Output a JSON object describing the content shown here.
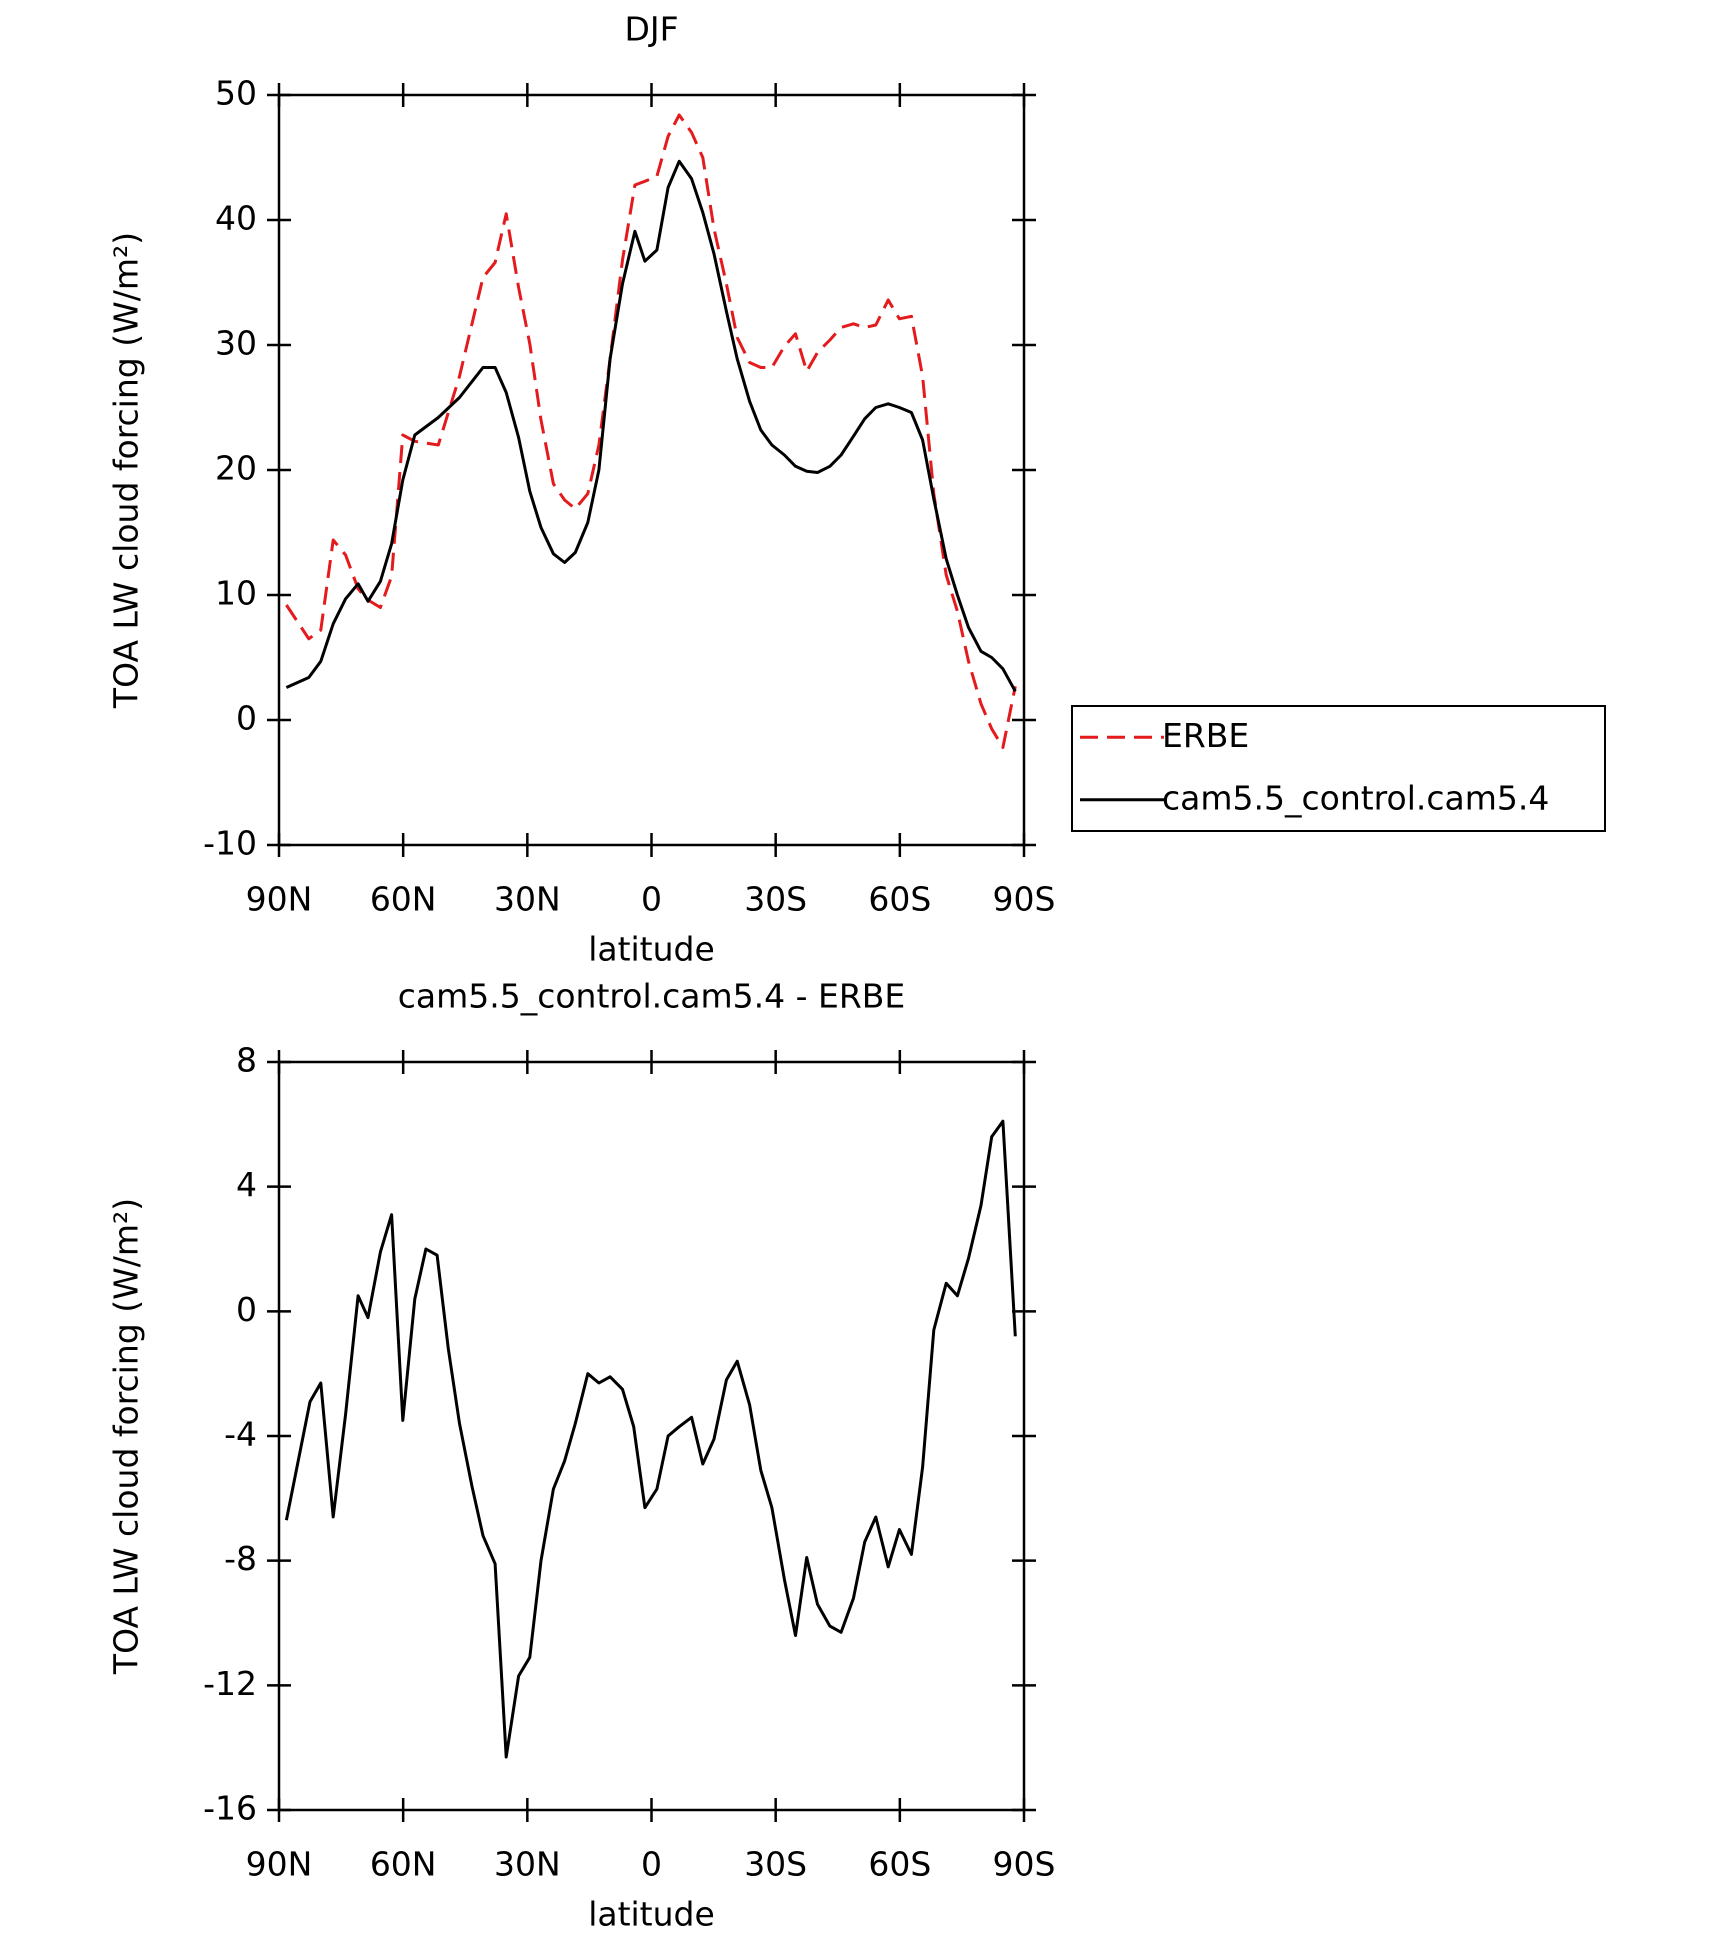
{
  "chart_data": [
    {
      "type": "line",
      "title": "DJF",
      "xlabel": "latitude",
      "ylabel": "TOA LW cloud forcing (W/m²)",
      "x": [
        88.2,
        82.8,
        79.9,
        76.9,
        73.9,
        70.9,
        68.5,
        65.5,
        62.8,
        60.1,
        57.2,
        51.5,
        46.4,
        40.7,
        37.8,
        35.1,
        32.1,
        29.4,
        26.7,
        23.7,
        21.0,
        18.4,
        15.4,
        12.7,
        10.0,
        7.0,
        4.0,
        1.6,
        -1.3,
        -4.0,
        -6.7,
        -9.7,
        -12.4,
        -15.1,
        -18.1,
        -20.7,
        -23.7,
        -26.4,
        -29.1,
        -32.1,
        -34.8,
        -37.5,
        -40.1,
        -43.1,
        -45.8,
        -48.8,
        -51.5,
        -54.2,
        -57.2,
        -59.9,
        -62.8,
        -65.5,
        -68.2,
        -71.2,
        -73.9,
        -76.6,
        -79.6,
        -82.2,
        -84.9,
        -87.9
      ],
      "series": [
        {
          "name": "ERBE",
          "color": "#e41a1c",
          "linestyle": "dashed",
          "values": [
            9.2,
            6.5,
            7.2,
            14.4,
            13.2,
            10.5,
            9.6,
            9.0,
            11.5,
            22.8,
            22.3,
            22.0,
            27.5,
            35.4,
            36.6,
            40.5,
            34.6,
            30.1,
            24.0,
            18.9,
            17.6,
            16.9,
            18.1,
            22.0,
            28.9,
            36.8,
            42.8,
            43.1,
            43.5,
            46.7,
            48.4,
            47.0,
            45.0,
            39.3,
            34.9,
            30.6,
            28.6,
            28.2,
            28.2,
            29.9,
            30.9,
            27.9,
            29.4,
            30.4,
            31.4,
            31.7,
            31.4,
            31.6,
            33.6,
            32.1,
            32.3,
            27.5,
            18.1,
            11.6,
            8.7,
            4.7,
            1.3,
            -0.7,
            -2.2,
            2.7
          ]
        },
        {
          "name": "cam5.5_control.cam5.4",
          "color": "#000000",
          "linestyle": "solid",
          "values": [
            2.6,
            3.4,
            4.7,
            7.7,
            9.7,
            10.9,
            9.5,
            11.1,
            14.1,
            19.2,
            22.8,
            24.2,
            25.8,
            28.2,
            28.2,
            26.2,
            22.6,
            18.3,
            15.4,
            13.3,
            12.6,
            13.4,
            15.8,
            20.0,
            28.9,
            34.9,
            39.1,
            36.7,
            37.6,
            42.6,
            44.7,
            43.3,
            40.6,
            37.3,
            32.7,
            28.9,
            25.5,
            23.2,
            22.0,
            21.2,
            20.3,
            19.9,
            19.8,
            20.3,
            21.2,
            22.7,
            24.1,
            25.0,
            25.3,
            25.0,
            24.6,
            22.4,
            17.7,
            12.9,
            10.0,
            7.4,
            5.5,
            5.0,
            4.1,
            2.3
          ]
        }
      ],
      "xlim": [
        90,
        -90
      ],
      "ylim": [
        -10,
        50
      ],
      "xticks": [
        {
          "value": 90,
          "label": "90N"
        },
        {
          "value": 60,
          "label": "60N"
        },
        {
          "value": 30,
          "label": "30N"
        },
        0,
        {
          "value": -30,
          "label": "30S"
        },
        {
          "value": -60,
          "label": "60S"
        },
        {
          "value": -90,
          "label": "90S"
        }
      ],
      "yticks": [
        -10,
        0,
        10,
        20,
        30,
        40,
        50
      ],
      "legend": "right"
    },
    {
      "type": "line",
      "title": "cam5.5_control.cam5.4 - ERBE",
      "xlabel": "latitude",
      "ylabel": "TOA LW cloud forcing (W/m²)",
      "x": [
        88.2,
        82.5,
        79.9,
        76.9,
        73.9,
        70.9,
        68.5,
        65.5,
        62.8,
        60.1,
        57.2,
        54.5,
        51.8,
        49.1,
        46.4,
        43.4,
        40.7,
        37.8,
        35.1,
        32.1,
        29.4,
        26.7,
        23.7,
        21.0,
        18.4,
        15.4,
        12.7,
        10.0,
        7.0,
        4.3,
        1.6,
        -1.3,
        -4.0,
        -6.7,
        -9.7,
        -12.4,
        -15.1,
        -18.1,
        -20.7,
        -23.7,
        -26.4,
        -29.1,
        -32.1,
        -34.8,
        -37.5,
        -40.1,
        -43.1,
        -45.8,
        -48.8,
        -51.5,
        -54.2,
        -57.2,
        -59.9,
        -62.8,
        -65.5,
        -68.2,
        -71.2,
        -73.9,
        -76.6,
        -79.6,
        -82.2,
        -84.9,
        -87.9
      ],
      "series": [
        {
          "color": "#000000",
          "linestyle": "solid",
          "values": [
            -6.7,
            -2.9,
            -2.3,
            -6.6,
            -3.3,
            0.5,
            -0.2,
            1.9,
            3.1,
            -3.5,
            0.4,
            2.0,
            1.8,
            -1.2,
            -3.6,
            -5.6,
            -7.2,
            -8.1,
            -14.3,
            -11.7,
            -11.1,
            -8.0,
            -5.7,
            -4.8,
            -3.6,
            -2.0,
            -2.3,
            -2.1,
            -2.5,
            -3.7,
            -6.3,
            -5.7,
            -4.0,
            -3.7,
            -3.4,
            -4.9,
            -4.1,
            -2.2,
            -1.6,
            -3.0,
            -5.1,
            -6.3,
            -8.6,
            -10.4,
            -7.9,
            -9.4,
            -10.1,
            -10.3,
            -9.2,
            -7.4,
            -6.6,
            -8.2,
            -7.0,
            -7.8,
            -5.0,
            -0.6,
            0.9,
            0.5,
            1.7,
            3.4,
            5.6,
            6.1,
            -0.8
          ]
        }
      ],
      "xlim": [
        90,
        -90
      ],
      "ylim": [
        -16,
        8
      ],
      "xticks": [
        {
          "value": 90,
          "label": "90N"
        },
        {
          "value": 60,
          "label": "60N"
        },
        {
          "value": 30,
          "label": "30N"
        },
        0,
        {
          "value": -30,
          "label": "30S"
        },
        {
          "value": -60,
          "label": "60S"
        },
        {
          "value": -90,
          "label": "90S"
        }
      ],
      "yticks": [
        -16,
        -12,
        -8,
        -4,
        0,
        4,
        8
      ]
    }
  ]
}
